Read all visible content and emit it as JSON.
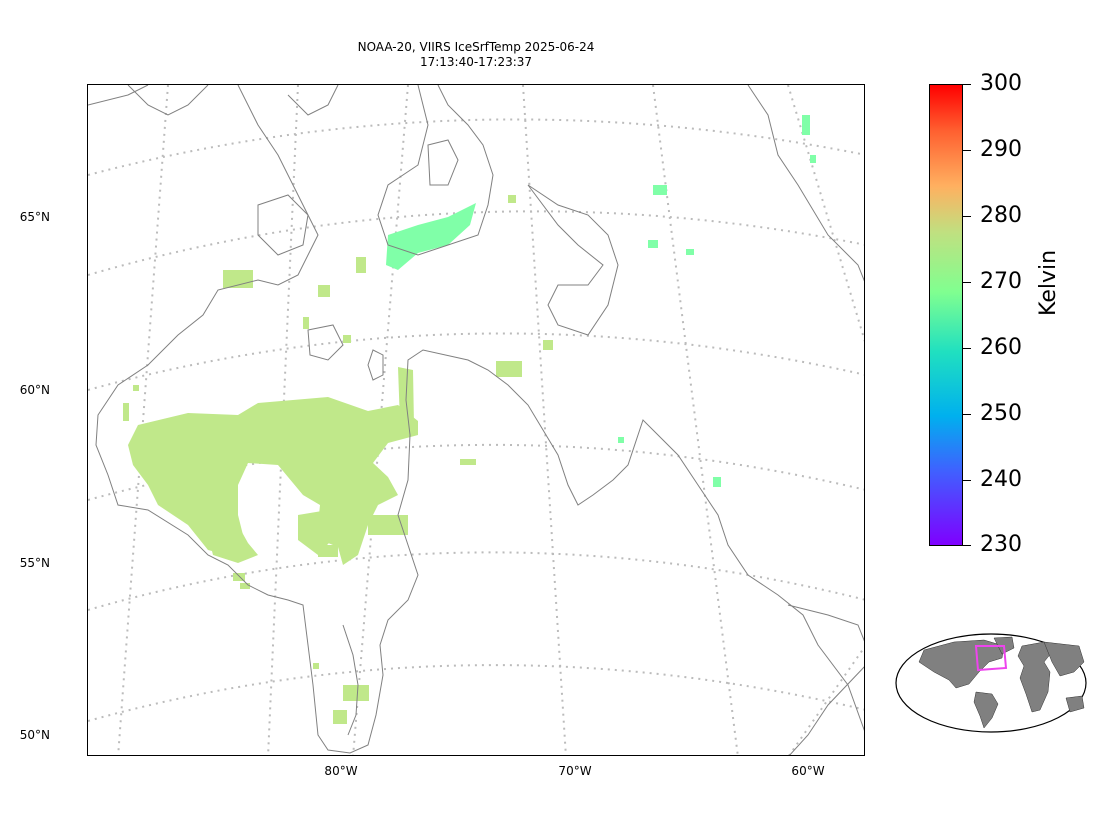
{
  "title": {
    "line1": "NOAA-20, VIIRS IceSrfTemp 2025-06-24",
    "line2": "17:13:40-17:23:37"
  },
  "map": {
    "lat_labels": [
      "65°N",
      "60°N",
      "55°N",
      "50°N"
    ],
    "lon_labels": [
      "80°W",
      "70°W",
      "60°W"
    ],
    "coastline_color": "#808080",
    "gridline_color": "#bbbbbb",
    "data_color_main": "#c0e88a",
    "data_color_cold": "#80ffa8"
  },
  "colorbar": {
    "label": "Kelvin",
    "min": 230,
    "max": 300,
    "ticks": [
      "300",
      "290",
      "280",
      "270",
      "260",
      "250",
      "240",
      "230"
    ],
    "colormap": "rainbow"
  },
  "inset": {
    "type": "world-locator",
    "land_color": "#808080",
    "box_color": "#ee44ee"
  }
}
